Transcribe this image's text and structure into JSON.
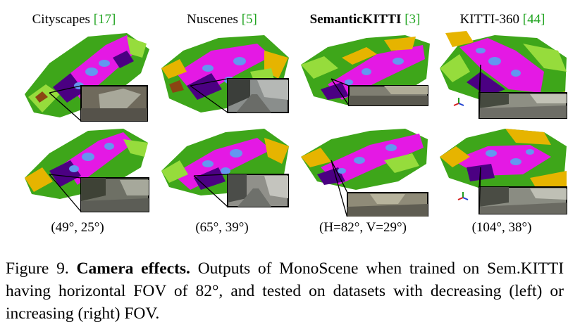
{
  "figure": {
    "columns": [
      {
        "dataset": "Cityscapes",
        "ref": "17",
        "fov": "(49°, 25°)",
        "bold": false
      },
      {
        "dataset": "Nuscenes",
        "ref": "5",
        "fov": "(65°, 39°)",
        "bold": false
      },
      {
        "dataset": "SemanticKITTI",
        "ref": "3",
        "fov": "(H=82°, V=29°)",
        "bold": true
      },
      {
        "dataset": "KITTI-360",
        "ref": "44",
        "fov": "(104°, 38°)",
        "bold": false
      }
    ],
    "semantic_colors": {
      "road": "#e419e4",
      "sidewalk": "#4b0082",
      "vegetation": "#3ea61a",
      "terrain": "#96dc3c",
      "car": "#6496f0",
      "building": "#e6b400",
      "other": "#8b4513"
    },
    "caption": {
      "label": "Figure 9.",
      "title": "Camera effects.",
      "text": "Outputs of MonoScene when trained on Sem.KITTI having horizontal FOV of 82°, and tested on datasets with decreasing (left) or increasing (right) FOV."
    }
  }
}
